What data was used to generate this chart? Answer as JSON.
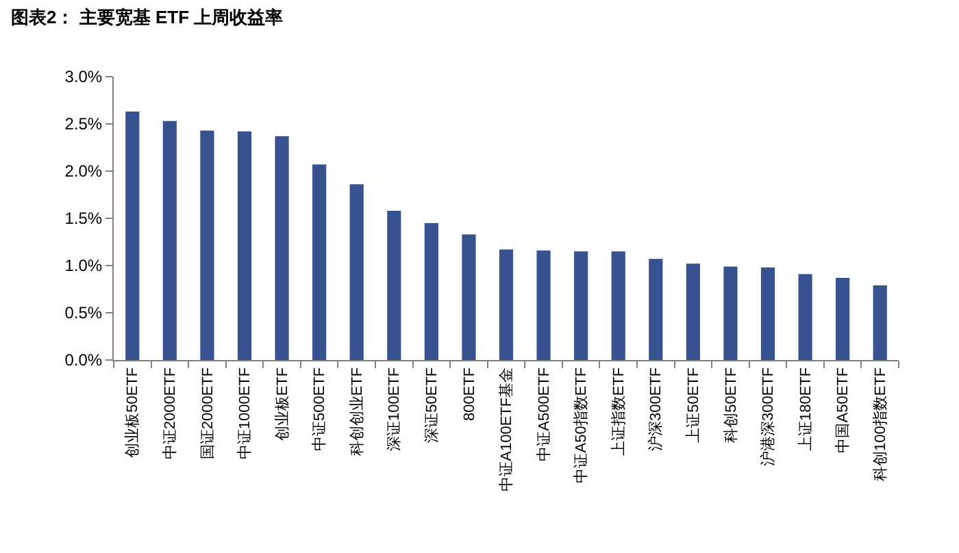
{
  "chart_data": {
    "type": "bar",
    "title": "图表2： 主要宽基 ETF 上周收益率",
    "categories": [
      "创业板50ETF",
      "中证2000ETF",
      "国证2000ETF",
      "中证1000ETF",
      "创业板ETF",
      "中证500ETF",
      "科创创业ETF",
      "深证100ETF",
      "深证50ETF",
      "800ETF",
      "中证A100ETF基金",
      "中证A500ETF",
      "中证A50指数ETF",
      "上证指数ETF",
      "沪深300ETF",
      "上证50ETF",
      "科创50ETF",
      "沪港深300ETF",
      "上证180ETF",
      "中国A50ETF",
      "科创100指数ETF"
    ],
    "values": [
      2.63,
      2.53,
      2.43,
      2.42,
      2.37,
      2.07,
      1.86,
      1.58,
      1.45,
      1.33,
      1.17,
      1.16,
      1.15,
      1.15,
      1.07,
      1.02,
      0.99,
      0.98,
      0.91,
      0.87,
      0.79
    ],
    "color": "#36528f",
    "ylim": [
      0,
      3
    ],
    "yticks": [
      {
        "value": 0,
        "label": "0.0%"
      },
      {
        "value": 0.5,
        "label": "0.5%"
      },
      {
        "value": 1,
        "label": "1.0%"
      },
      {
        "value": 1.5,
        "label": "1.5%"
      },
      {
        "value": 2,
        "label": "2.0%"
      },
      {
        "value": 2.5,
        "label": "2.5%"
      },
      {
        "value": 3,
        "label": "3.0%"
      }
    ]
  }
}
